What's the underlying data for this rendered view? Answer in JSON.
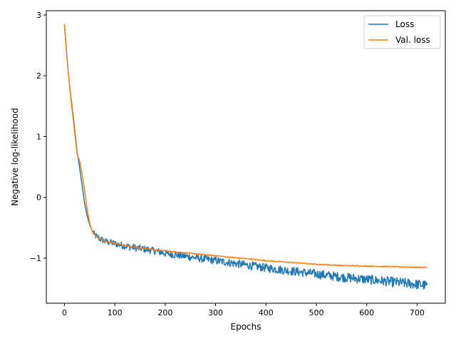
{
  "chart_data": {
    "type": "line",
    "xlabel": "Epochs",
    "ylabel": "Negative log-likelihood",
    "xlim": [
      -36,
      756
    ],
    "ylim": [
      -1.74,
      3.07
    ],
    "x_ticks": [
      0,
      100,
      200,
      300,
      400,
      500,
      600,
      700
    ],
    "x_tick_labels": [
      "0",
      "100",
      "200",
      "300",
      "400",
      "500",
      "600",
      "700"
    ],
    "y_ticks": [
      3,
      2,
      1,
      0,
      -1
    ],
    "y_tick_labels": [
      "3",
      "2",
      "1",
      "0",
      "−1"
    ],
    "grid": false,
    "legend_position": "top-right",
    "series": [
      {
        "name": "Loss",
        "color": "#1f77b4",
        "noise": "high",
        "x": [
          0,
          5,
          10,
          15,
          20,
          25,
          30,
          35,
          40,
          45,
          50,
          55,
          60,
          70,
          80,
          100,
          120,
          150,
          180,
          200,
          250,
          300,
          350,
          400,
          450,
          500,
          550,
          600,
          650,
          700,
          720
        ],
        "y": [
          2.84,
          2.3,
          1.85,
          1.5,
          1.15,
          0.75,
          0.5,
          0.2,
          -0.1,
          -0.3,
          -0.45,
          -0.55,
          -0.62,
          -0.68,
          -0.72,
          -0.76,
          -0.8,
          -0.84,
          -0.88,
          -0.92,
          -0.98,
          -1.04,
          -1.1,
          -1.16,
          -1.21,
          -1.26,
          -1.31,
          -1.35,
          -1.39,
          -1.43,
          -1.45
        ]
      },
      {
        "name": "Val. loss",
        "color": "#ff7f0e",
        "noise": "low",
        "x": [
          0,
          5,
          10,
          15,
          20,
          25,
          30,
          35,
          40,
          45,
          50,
          55,
          60,
          70,
          80,
          100,
          120,
          150,
          200,
          250,
          300,
          350,
          400,
          450,
          500,
          550,
          600,
          650,
          700,
          720
        ],
        "y": [
          2.85,
          2.3,
          1.85,
          1.45,
          1.1,
          0.72,
          0.6,
          0.4,
          0.1,
          -0.2,
          -0.42,
          -0.55,
          -0.62,
          -0.68,
          -0.72,
          -0.75,
          -0.79,
          -0.83,
          -0.88,
          -0.92,
          -0.96,
          -1.0,
          -1.04,
          -1.07,
          -1.1,
          -1.12,
          -1.13,
          -1.14,
          -1.15,
          -1.15
        ]
      }
    ]
  }
}
